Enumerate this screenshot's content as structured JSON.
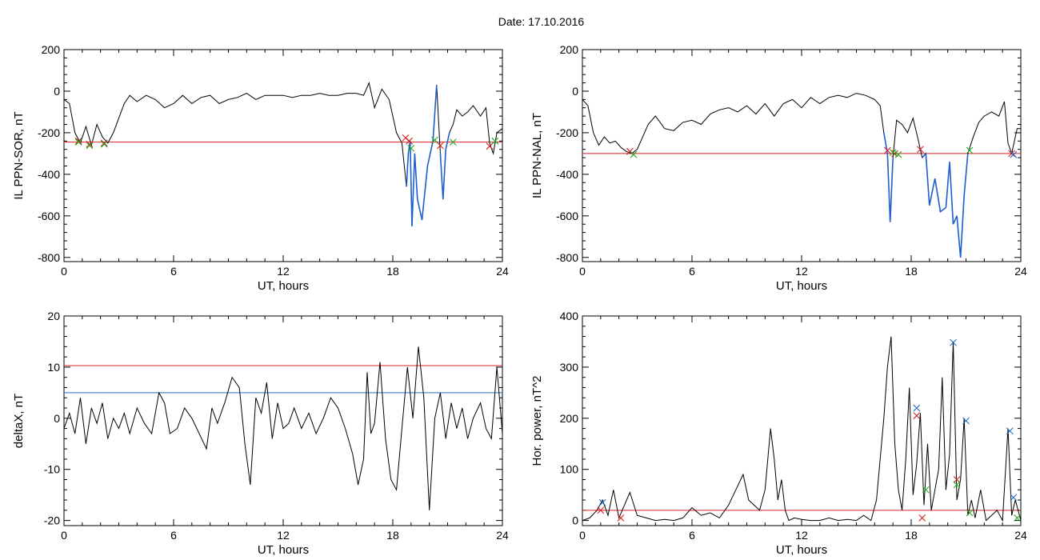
{
  "header": {
    "title": "Date:  17.10.2016"
  },
  "colors": {
    "trace": "#000000",
    "threshold_red": "#d62020",
    "threshold_blue": "#1f6fc4",
    "segment_blue": "#1f5fd0",
    "marker_green": "#22aa22"
  },
  "chart_data": [
    {
      "type": "line",
      "name": "IL PPN-SOR",
      "xlabel": "UT, hours",
      "ylabel": "IL PPN-SOR, nT",
      "xlim": [
        0,
        24
      ],
      "ylim": [
        -820,
        200
      ],
      "xticks": [
        0,
        6,
        12,
        18,
        24
      ],
      "yticks": [
        200,
        0,
        -200,
        -400,
        -600,
        -800
      ],
      "threshold": -245,
      "x": [
        0,
        0.3,
        0.6,
        0.9,
        1.2,
        1.5,
        1.8,
        2.1,
        2.4,
        2.7,
        3.0,
        3.3,
        3.6,
        4.0,
        4.5,
        5.0,
        5.5,
        6.0,
        6.5,
        7.0,
        7.5,
        8.0,
        8.5,
        9.0,
        9.5,
        10.0,
        10.5,
        11.0,
        11.5,
        12.0,
        12.5,
        13.0,
        13.5,
        14.0,
        14.5,
        15.0,
        15.5,
        16.0,
        16.4,
        16.7,
        17.0,
        17.4,
        17.8,
        18.2,
        18.5,
        18.75,
        18.85,
        18.95,
        19.05,
        19.2,
        19.35,
        19.6,
        19.9,
        20.2,
        20.4,
        20.6,
        20.75,
        20.9,
        21.1,
        21.3,
        21.5,
        21.8,
        22.1,
        22.4,
        22.8,
        23.1,
        23.3,
        23.5,
        23.7,
        24.0
      ],
      "y": [
        -40,
        -60,
        -200,
        -250,
        -170,
        -260,
        -160,
        -220,
        -250,
        -200,
        -130,
        -60,
        -20,
        -50,
        -20,
        -40,
        -80,
        -60,
        -20,
        -60,
        -30,
        -20,
        -60,
        -40,
        -30,
        -10,
        -40,
        -20,
        -20,
        -20,
        -30,
        -20,
        -20,
        -10,
        -20,
        -20,
        -10,
        -10,
        -20,
        40,
        -80,
        10,
        -40,
        -200,
        -250,
        -460,
        -300,
        -240,
        -650,
        -300,
        -520,
        -620,
        -360,
        -240,
        30,
        -300,
        -520,
        -280,
        -200,
        -160,
        -90,
        -120,
        -100,
        -70,
        -120,
        -80,
        -250,
        -300,
        -200,
        -180
      ],
      "markers": [
        {
          "x": 0.8,
          "y": -240,
          "color": "red"
        },
        {
          "x": 0.8,
          "y": -245,
          "color": "green"
        },
        {
          "x": 1.4,
          "y": -255,
          "color": "red"
        },
        {
          "x": 1.4,
          "y": -262,
          "color": "green"
        },
        {
          "x": 2.2,
          "y": -250,
          "color": "red"
        },
        {
          "x": 2.2,
          "y": -255,
          "color": "green"
        },
        {
          "x": 18.7,
          "y": -225,
          "color": "red"
        },
        {
          "x": 18.9,
          "y": -240,
          "color": "red"
        },
        {
          "x": 19.0,
          "y": -275,
          "color": "green"
        },
        {
          "x": 20.3,
          "y": -235,
          "color": "green"
        },
        {
          "x": 20.6,
          "y": -262,
          "color": "red"
        },
        {
          "x": 21.3,
          "y": -245,
          "color": "green"
        },
        {
          "x": 23.3,
          "y": -265,
          "color": "red"
        },
        {
          "x": 23.6,
          "y": -240,
          "color": "green"
        }
      ],
      "segments": [
        [
          18.75,
          19.35
        ],
        [
          19.35,
          19.9
        ],
        [
          19.9,
          20.4
        ],
        [
          20.6,
          21.1
        ]
      ]
    },
    {
      "type": "line",
      "name": "IL PPN-NAL",
      "xlabel": "UT, hours",
      "ylabel": "IL PPN-NAL, nT",
      "xlim": [
        0,
        24
      ],
      "ylim": [
        -820,
        200
      ],
      "xticks": [
        0,
        6,
        12,
        18,
        24
      ],
      "yticks": [
        200,
        0,
        -200,
        -400,
        -600,
        -800
      ],
      "threshold": -300,
      "x": [
        0,
        0.3,
        0.6,
        0.9,
        1.2,
        1.5,
        1.8,
        2.1,
        2.4,
        2.7,
        3.0,
        3.3,
        3.6,
        4.0,
        4.5,
        5.0,
        5.5,
        6.0,
        6.5,
        7.0,
        7.5,
        8.0,
        8.5,
        9.0,
        9.5,
        10.0,
        10.5,
        11.0,
        11.5,
        12.0,
        12.5,
        13.0,
        13.5,
        14.0,
        14.5,
        15.0,
        15.5,
        16.0,
        16.3,
        16.5,
        16.7,
        16.85,
        17.0,
        17.2,
        17.5,
        17.8,
        18.1,
        18.4,
        18.6,
        18.8,
        19.0,
        19.3,
        19.6,
        19.9,
        20.1,
        20.3,
        20.5,
        20.7,
        20.9,
        21.1,
        21.4,
        21.7,
        22.0,
        22.4,
        22.8,
        23.1,
        23.3,
        23.5,
        23.8,
        24.0
      ],
      "y": [
        -40,
        -70,
        -200,
        -260,
        -220,
        -250,
        -240,
        -270,
        -290,
        -300,
        -280,
        -220,
        -160,
        -120,
        -180,
        -190,
        -150,
        -140,
        -160,
        -110,
        -90,
        -80,
        -100,
        -70,
        -110,
        -60,
        -120,
        -60,
        -40,
        -80,
        -30,
        -60,
        -30,
        -20,
        -30,
        -10,
        -20,
        -40,
        -70,
        -200,
        -300,
        -630,
        -320,
        -140,
        -160,
        -200,
        -130,
        -240,
        -320,
        -300,
        -550,
        -420,
        -580,
        -560,
        -340,
        -640,
        -600,
        -800,
        -500,
        -300,
        -220,
        -150,
        -120,
        -100,
        -120,
        -50,
        -250,
        -300,
        -180,
        -180
      ],
      "markers": [
        {
          "x": 2.6,
          "y": -290,
          "color": "red"
        },
        {
          "x": 2.8,
          "y": -305,
          "color": "green"
        },
        {
          "x": 16.7,
          "y": -285,
          "color": "red"
        },
        {
          "x": 17.1,
          "y": -300,
          "color": "red"
        },
        {
          "x": 17.3,
          "y": -305,
          "color": "green"
        },
        {
          "x": 17.0,
          "y": -295,
          "color": "green"
        },
        {
          "x": 18.5,
          "y": -280,
          "color": "red"
        },
        {
          "x": 21.2,
          "y": -285,
          "color": "green"
        },
        {
          "x": 23.5,
          "y": -300,
          "color": "red"
        },
        {
          "x": 23.6,
          "y": -305,
          "color": "blue"
        }
      ],
      "segments": [
        [
          16.5,
          17.0
        ],
        [
          18.6,
          20.7
        ],
        [
          20.7,
          21.1
        ]
      ]
    },
    {
      "type": "line",
      "name": "deltaX",
      "xlabel": "UT, hours",
      "ylabel": "deltaX, nT",
      "xlim": [
        0,
        24
      ],
      "ylim": [
        -21,
        20
      ],
      "xticks": [
        0,
        6,
        12,
        18,
        24
      ],
      "yticks": [
        20,
        10,
        0,
        -10,
        -20
      ],
      "thresholds": [
        {
          "value": 10.3,
          "color": "red"
        },
        {
          "value": 5,
          "color": "blue"
        }
      ],
      "x": [
        0,
        0.3,
        0.6,
        0.9,
        1.2,
        1.5,
        1.8,
        2.1,
        2.4,
        2.7,
        3.0,
        3.3,
        3.6,
        4.0,
        4.4,
        4.8,
        5.2,
        5.5,
        5.8,
        6.2,
        6.6,
        7.0,
        7.4,
        7.8,
        8.1,
        8.4,
        8.8,
        9.2,
        9.6,
        9.9,
        10.2,
        10.5,
        10.8,
        11.1,
        11.4,
        11.7,
        12.0,
        12.3,
        12.6,
        13.0,
        13.4,
        13.8,
        14.2,
        14.6,
        15.0,
        15.4,
        15.8,
        16.1,
        16.4,
        16.6,
        16.8,
        17.0,
        17.3,
        17.6,
        17.9,
        18.2,
        18.5,
        18.8,
        19.1,
        19.4,
        19.7,
        20.0,
        20.3,
        20.6,
        20.9,
        21.2,
        21.5,
        21.8,
        22.1,
        22.4,
        22.8,
        23.1,
        23.4,
        23.7,
        24.0
      ],
      "y": [
        -2,
        1,
        -3,
        4,
        -5,
        2,
        -1,
        3,
        -4,
        0,
        -2,
        1,
        -3,
        2,
        -1,
        -3,
        5,
        3,
        -3,
        -2,
        2,
        0,
        -3,
        -6,
        2,
        -1,
        3,
        8,
        6,
        -5,
        -13,
        4,
        1,
        7,
        -4,
        3,
        -2,
        -1,
        2,
        -2,
        1,
        -3,
        0,
        4,
        2,
        -2,
        -7,
        -13,
        -8,
        9,
        -3,
        -1,
        11,
        -4,
        -12,
        -14,
        -2,
        10,
        0,
        14,
        4,
        -18,
        0,
        5,
        -4,
        3,
        -2,
        2,
        -4,
        0,
        3,
        -2,
        -4,
        10,
        -3
      ],
      "segments": []
    },
    {
      "type": "line",
      "name": "Hor. power",
      "xlabel": "UT, hours",
      "ylabel": "Hor. power, nT^2",
      "xlim": [
        0,
        24
      ],
      "ylim": [
        -10,
        400
      ],
      "xticks": [
        0,
        6,
        12,
        18,
        24
      ],
      "yticks": [
        400,
        300,
        200,
        100,
        0
      ],
      "threshold": 20,
      "x": [
        0,
        0.4,
        0.8,
        1.1,
        1.4,
        1.7,
        2.0,
        2.3,
        2.6,
        3.0,
        3.5,
        4.0,
        4.5,
        5.0,
        5.5,
        6.0,
        6.5,
        7.0,
        7.5,
        8.0,
        8.4,
        8.8,
        9.1,
        9.4,
        9.7,
        10.0,
        10.3,
        10.5,
        10.7,
        10.9,
        11.1,
        11.3,
        11.6,
        12.0,
        12.5,
        13.0,
        13.5,
        14.0,
        14.5,
        15.0,
        15.4,
        15.8,
        16.1,
        16.3,
        16.5,
        16.7,
        16.9,
        17.1,
        17.3,
        17.5,
        17.7,
        17.9,
        18.1,
        18.3,
        18.5,
        18.7,
        18.9,
        19.1,
        19.3,
        19.5,
        19.7,
        19.9,
        20.1,
        20.3,
        20.5,
        20.7,
        20.9,
        21.1,
        21.3,
        21.5,
        21.8,
        22.1,
        22.4,
        22.7,
        23.0,
        23.3,
        23.5,
        23.7,
        24.0
      ],
      "y": [
        0,
        5,
        20,
        40,
        10,
        60,
        5,
        30,
        55,
        10,
        5,
        0,
        2,
        0,
        5,
        25,
        10,
        15,
        5,
        30,
        60,
        90,
        40,
        30,
        20,
        60,
        180,
        120,
        40,
        80,
        20,
        0,
        5,
        2,
        0,
        0,
        5,
        0,
        2,
        0,
        10,
        0,
        40,
        120,
        200,
        300,
        360,
        150,
        60,
        20,
        120,
        260,
        50,
        110,
        210,
        30,
        150,
        20,
        60,
        100,
        280,
        60,
        130,
        350,
        40,
        80,
        200,
        10,
        40,
        5,
        60,
        0,
        10,
        20,
        0,
        180,
        10,
        40,
        0
      ],
      "markers": [
        {
          "x": 1.0,
          "y": 20,
          "color": "red"
        },
        {
          "x": 1.1,
          "y": 35,
          "color": "blue"
        },
        {
          "x": 2.1,
          "y": 5,
          "color": "red"
        },
        {
          "x": 18.3,
          "y": 205,
          "color": "red"
        },
        {
          "x": 18.3,
          "y": 220,
          "color": "blue"
        },
        {
          "x": 18.6,
          "y": 5,
          "color": "red"
        },
        {
          "x": 18.8,
          "y": 60,
          "color": "green"
        },
        {
          "x": 20.3,
          "y": 348,
          "color": "blue"
        },
        {
          "x": 20.5,
          "y": 80,
          "color": "red"
        },
        {
          "x": 20.5,
          "y": 70,
          "color": "green"
        },
        {
          "x": 21.0,
          "y": 195,
          "color": "blue"
        },
        {
          "x": 21.2,
          "y": 15,
          "color": "green"
        },
        {
          "x": 23.4,
          "y": 175,
          "color": "blue"
        },
        {
          "x": 23.6,
          "y": 45,
          "color": "blue"
        },
        {
          "x": 23.8,
          "y": 5,
          "color": "green"
        }
      ],
      "segments": []
    }
  ]
}
